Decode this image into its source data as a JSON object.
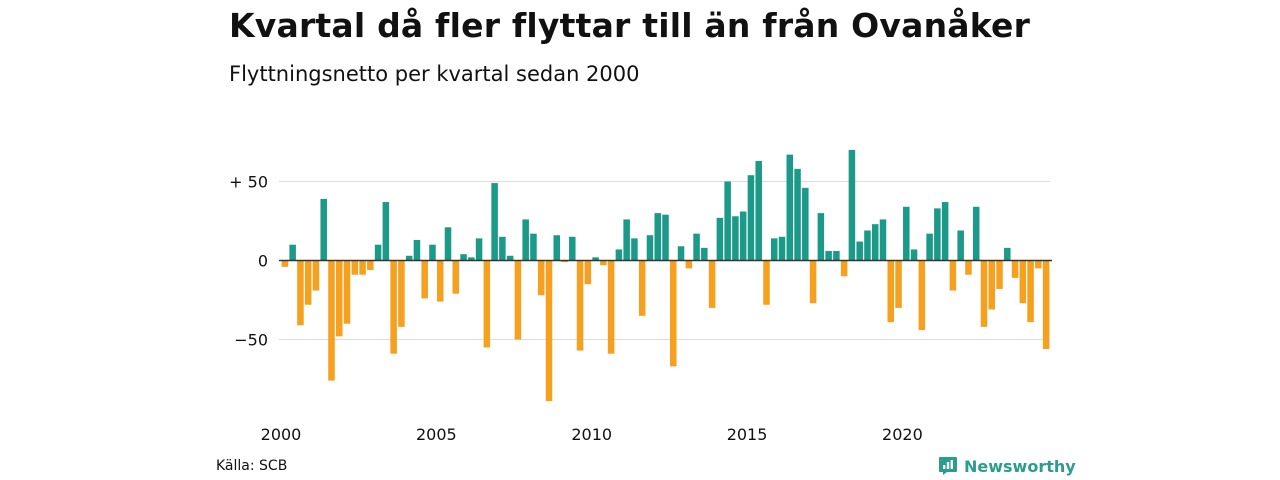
{
  "title": "Kvartal då fler flyttar till än från Ovanåker",
  "subtitle": "Flyttningsnetto per kvartal sedan 2000",
  "source": "Källa: SCB",
  "brand": "Newsworthy",
  "colors": {
    "positive": "#1b9a8a",
    "negative": "#f5a01e",
    "grid": "#dddddd",
    "zero_line": "#333333",
    "brand": "#2a9d8f"
  },
  "icons": {
    "brand_logo": "newsworthy-logo-icon"
  },
  "chart_data": {
    "type": "bar",
    "x_start": "2000 Q1",
    "frequency": "quarterly",
    "values": [
      -4,
      10,
      -41,
      -28,
      -19,
      39,
      -76,
      -48,
      -40,
      -9,
      -9,
      -6,
      10,
      37,
      -59,
      -42,
      3,
      13,
      -24,
      10,
      -26,
      21,
      -21,
      4,
      2,
      14,
      -55,
      49,
      15,
      3,
      -50,
      26,
      17,
      -22,
      -89,
      16,
      -1,
      15,
      -57,
      -15,
      2,
      -3,
      -59,
      7,
      26,
      14,
      -35,
      16,
      30,
      29,
      -67,
      9,
      -5,
      17,
      8,
      -30,
      27,
      50,
      28,
      31,
      54,
      63,
      -28,
      14,
      15,
      67,
      58,
      46,
      -27,
      30,
      6,
      6,
      -10,
      70,
      12,
      19,
      23,
      26,
      -39,
      -30,
      34,
      7,
      -44,
      17,
      33,
      37,
      -19,
      19,
      -9,
      34,
      -42,
      -31,
      -18,
      8,
      -11,
      -27,
      -39,
      -5,
      -56
    ],
    "xlabel": "",
    "ylabel": "",
    "y_ticks": [
      50,
      0,
      -50
    ],
    "y_tick_labels": [
      "+ 50",
      "0",
      "−50"
    ],
    "x_ticks": [
      2000,
      2005,
      2010,
      2015,
      2020
    ],
    "x_tick_labels": [
      "2000",
      "2005",
      "2010",
      "2015",
      "2020"
    ],
    "ylim": [
      -90,
      70
    ],
    "grid": true,
    "legend": "none"
  }
}
